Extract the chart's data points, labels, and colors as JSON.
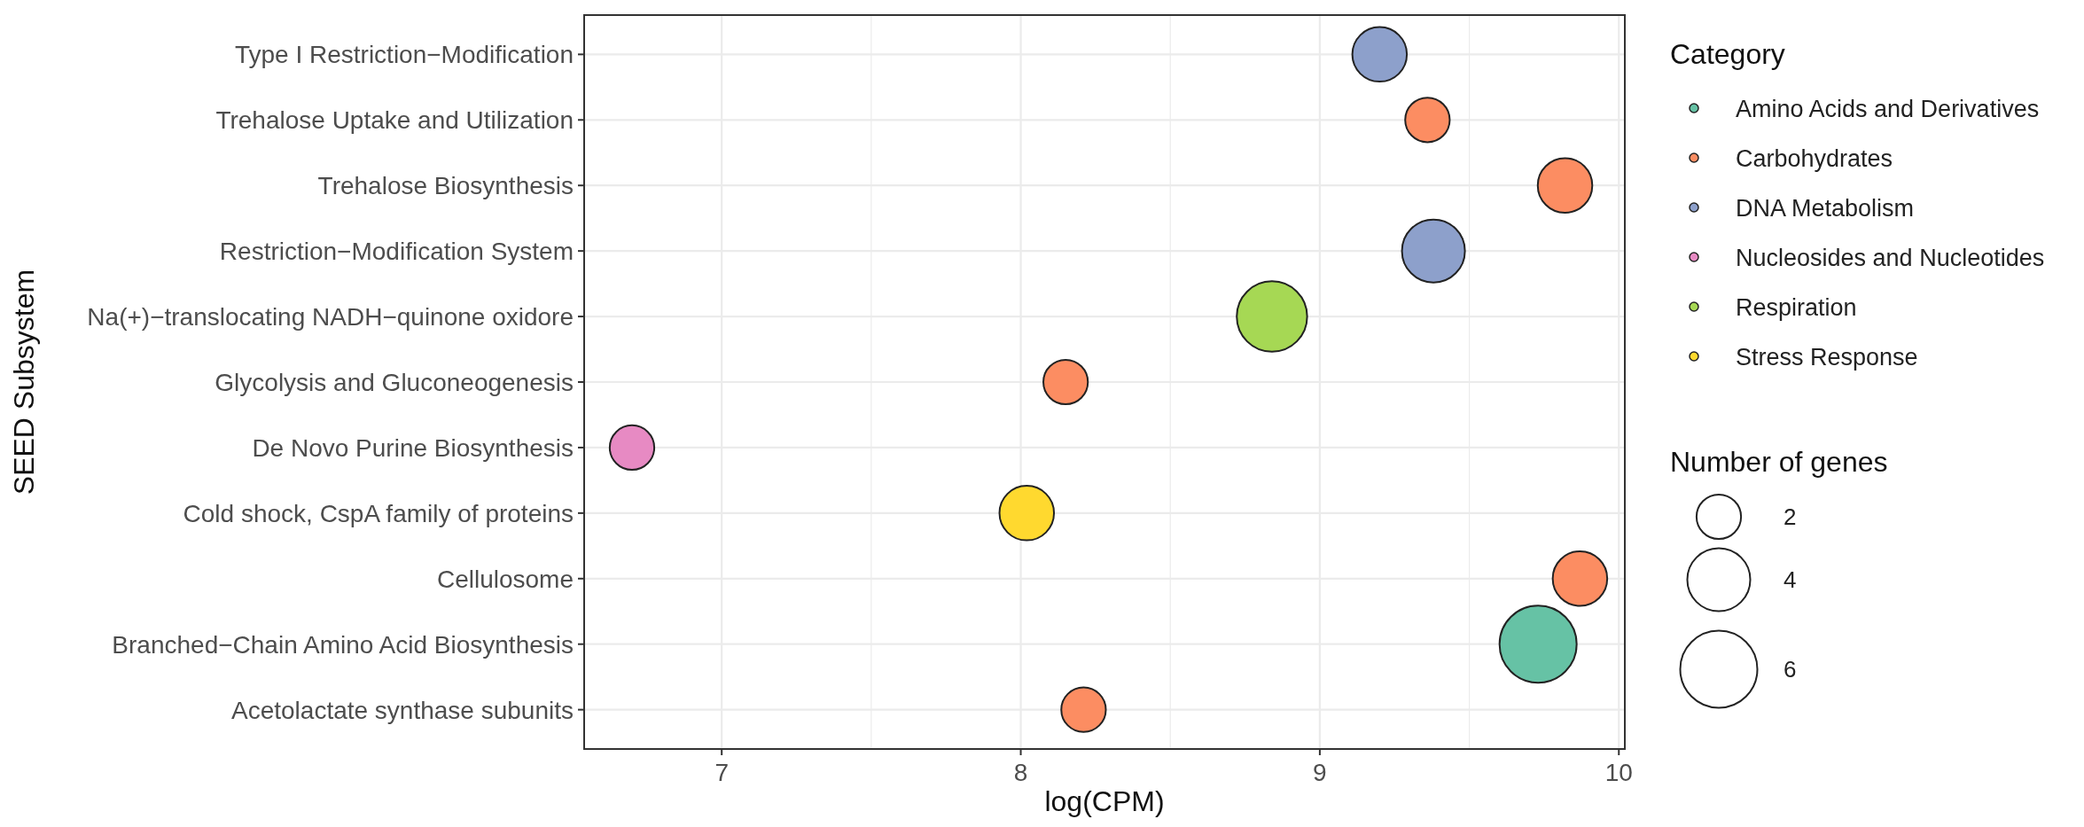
{
  "chart_data": {
    "type": "bubble",
    "orientation": "horizontal",
    "xlabel": "log(CPM)",
    "ylabel": "SEED Subsystem",
    "legend_title": "Category",
    "legend": "right",
    "grid": true,
    "categories": [
      "Type I Restriction−Modification",
      "Trehalose Uptake and Utilization",
      "Trehalose Biosynthesis",
      "Restriction−Modification System",
      "Na(+)−translocating NADH−quinone oxidore",
      "Glycolysis and Gluconeogenesis",
      "De Novo Purine Biosynthesis",
      "Cold shock, CspA family of proteins",
      "Cellulosome",
      "Branched−Chain Amino Acid Biosynthesis",
      "Acetolactate synthase subunits"
    ],
    "xlim": [
      6.54,
      10.02
    ],
    "xticks": [
      7,
      {
        "value": 7.5,
        "label": null
      },
      8,
      {
        "value": 8.5,
        "label": null
      },
      9,
      {
        "value": 9.5,
        "label": null
      },
      10
    ],
    "size_legend": [
      2,
      4,
      6
    ],
    "annotations": [
      "Number of genes"
    ],
    "series": [
      {
        "name": "Amino Acids and Derivatives",
        "color": "#66c2a5",
        "values": [
          null,
          null,
          null,
          null,
          null,
          null,
          null,
          null,
          null,
          9.73,
          null
        ],
        "sizes": [
          null,
          null,
          null,
          null,
          null,
          null,
          null,
          null,
          null,
          6,
          null
        ]
      },
      {
        "name": "Carbohydrates",
        "color": "#fc8d62",
        "values": [
          null,
          9.36,
          9.82,
          null,
          null,
          8.15,
          null,
          null,
          9.87,
          null,
          8.21
        ],
        "sizes": [
          null,
          2,
          3,
          null,
          null,
          2,
          null,
          null,
          3,
          null,
          2
        ]
      },
      {
        "name": "DNA Metabolism",
        "color": "#8da0cb",
        "values": [
          9.2,
          null,
          null,
          9.38,
          null,
          null,
          null,
          null,
          null,
          null,
          null
        ],
        "sizes": [
          3,
          null,
          null,
          4,
          null,
          null,
          null,
          null,
          null,
          null,
          null
        ]
      },
      {
        "name": "Nucleosides and Nucleotides",
        "color": "#e78ac3",
        "values": [
          null,
          null,
          null,
          null,
          null,
          null,
          6.7,
          null,
          null,
          null,
          null
        ],
        "sizes": [
          null,
          null,
          null,
          null,
          null,
          null,
          2,
          null,
          null,
          null,
          null
        ]
      },
      {
        "name": "Respiration",
        "color": "#a6d854",
        "values": [
          null,
          null,
          null,
          null,
          8.84,
          null,
          null,
          null,
          null,
          null,
          null
        ],
        "sizes": [
          null,
          null,
          null,
          null,
          5,
          null,
          null,
          null,
          null,
          null,
          null
        ]
      },
      {
        "name": "Stress Response",
        "color": "#ffd92f",
        "values": [
          null,
          null,
          null,
          null,
          null,
          null,
          null,
          8.02,
          null,
          null,
          null
        ],
        "sizes": [
          null,
          null,
          null,
          null,
          null,
          null,
          null,
          3,
          null,
          null,
          null
        ]
      }
    ]
  }
}
